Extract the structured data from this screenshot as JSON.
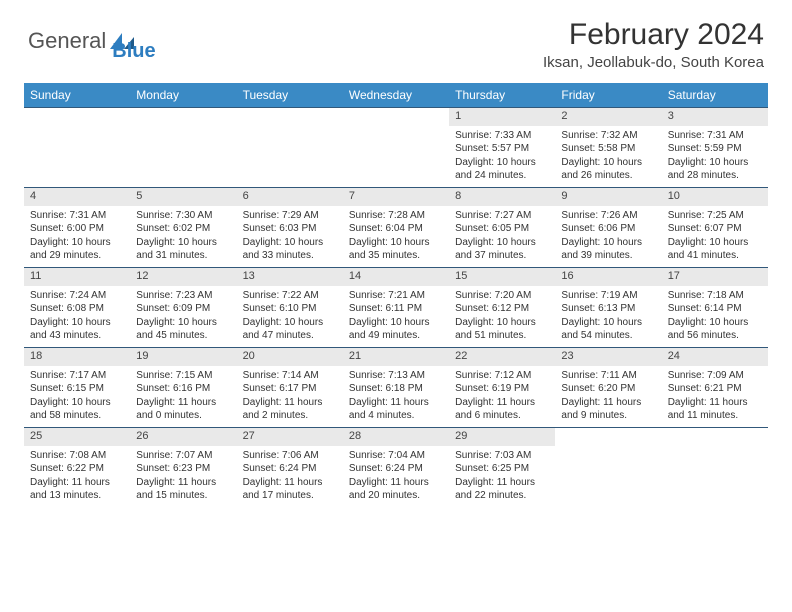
{
  "brand": {
    "part1": "General",
    "part2": "Blue"
  },
  "title": "February 2024",
  "location": "Iksan, Jeollabuk-do, South Korea",
  "colors": {
    "header_bg": "#3a8ac5",
    "header_text": "#ffffff",
    "rule": "#31587a",
    "daynum_bg": "#e9e9e9",
    "brand_blue": "#2d7dc0"
  },
  "weekdays": [
    "Sunday",
    "Monday",
    "Tuesday",
    "Wednesday",
    "Thursday",
    "Friday",
    "Saturday"
  ],
  "weeks": [
    {
      "nums": [
        "",
        "",
        "",
        "",
        "1",
        "2",
        "3"
      ],
      "cells": [
        null,
        null,
        null,
        null,
        {
          "sunrise": "7:33 AM",
          "sunset": "5:57 PM",
          "dl1": "Daylight: 10 hours",
          "dl2": "and 24 minutes."
        },
        {
          "sunrise": "7:32 AM",
          "sunset": "5:58 PM",
          "dl1": "Daylight: 10 hours",
          "dl2": "and 26 minutes."
        },
        {
          "sunrise": "7:31 AM",
          "sunset": "5:59 PM",
          "dl1": "Daylight: 10 hours",
          "dl2": "and 28 minutes."
        }
      ]
    },
    {
      "nums": [
        "4",
        "5",
        "6",
        "7",
        "8",
        "9",
        "10"
      ],
      "cells": [
        {
          "sunrise": "7:31 AM",
          "sunset": "6:00 PM",
          "dl1": "Daylight: 10 hours",
          "dl2": "and 29 minutes."
        },
        {
          "sunrise": "7:30 AM",
          "sunset": "6:02 PM",
          "dl1": "Daylight: 10 hours",
          "dl2": "and 31 minutes."
        },
        {
          "sunrise": "7:29 AM",
          "sunset": "6:03 PM",
          "dl1": "Daylight: 10 hours",
          "dl2": "and 33 minutes."
        },
        {
          "sunrise": "7:28 AM",
          "sunset": "6:04 PM",
          "dl1": "Daylight: 10 hours",
          "dl2": "and 35 minutes."
        },
        {
          "sunrise": "7:27 AM",
          "sunset": "6:05 PM",
          "dl1": "Daylight: 10 hours",
          "dl2": "and 37 minutes."
        },
        {
          "sunrise": "7:26 AM",
          "sunset": "6:06 PM",
          "dl1": "Daylight: 10 hours",
          "dl2": "and 39 minutes."
        },
        {
          "sunrise": "7:25 AM",
          "sunset": "6:07 PM",
          "dl1": "Daylight: 10 hours",
          "dl2": "and 41 minutes."
        }
      ]
    },
    {
      "nums": [
        "11",
        "12",
        "13",
        "14",
        "15",
        "16",
        "17"
      ],
      "cells": [
        {
          "sunrise": "7:24 AM",
          "sunset": "6:08 PM",
          "dl1": "Daylight: 10 hours",
          "dl2": "and 43 minutes."
        },
        {
          "sunrise": "7:23 AM",
          "sunset": "6:09 PM",
          "dl1": "Daylight: 10 hours",
          "dl2": "and 45 minutes."
        },
        {
          "sunrise": "7:22 AM",
          "sunset": "6:10 PM",
          "dl1": "Daylight: 10 hours",
          "dl2": "and 47 minutes."
        },
        {
          "sunrise": "7:21 AM",
          "sunset": "6:11 PM",
          "dl1": "Daylight: 10 hours",
          "dl2": "and 49 minutes."
        },
        {
          "sunrise": "7:20 AM",
          "sunset": "6:12 PM",
          "dl1": "Daylight: 10 hours",
          "dl2": "and 51 minutes."
        },
        {
          "sunrise": "7:19 AM",
          "sunset": "6:13 PM",
          "dl1": "Daylight: 10 hours",
          "dl2": "and 54 minutes."
        },
        {
          "sunrise": "7:18 AM",
          "sunset": "6:14 PM",
          "dl1": "Daylight: 10 hours",
          "dl2": "and 56 minutes."
        }
      ]
    },
    {
      "nums": [
        "18",
        "19",
        "20",
        "21",
        "22",
        "23",
        "24"
      ],
      "cells": [
        {
          "sunrise": "7:17 AM",
          "sunset": "6:15 PM",
          "dl1": "Daylight: 10 hours",
          "dl2": "and 58 minutes."
        },
        {
          "sunrise": "7:15 AM",
          "sunset": "6:16 PM",
          "dl1": "Daylight: 11 hours",
          "dl2": "and 0 minutes."
        },
        {
          "sunrise": "7:14 AM",
          "sunset": "6:17 PM",
          "dl1": "Daylight: 11 hours",
          "dl2": "and 2 minutes."
        },
        {
          "sunrise": "7:13 AM",
          "sunset": "6:18 PM",
          "dl1": "Daylight: 11 hours",
          "dl2": "and 4 minutes."
        },
        {
          "sunrise": "7:12 AM",
          "sunset": "6:19 PM",
          "dl1": "Daylight: 11 hours",
          "dl2": "and 6 minutes."
        },
        {
          "sunrise": "7:11 AM",
          "sunset": "6:20 PM",
          "dl1": "Daylight: 11 hours",
          "dl2": "and 9 minutes."
        },
        {
          "sunrise": "7:09 AM",
          "sunset": "6:21 PM",
          "dl1": "Daylight: 11 hours",
          "dl2": "and 11 minutes."
        }
      ]
    },
    {
      "nums": [
        "25",
        "26",
        "27",
        "28",
        "29",
        "",
        ""
      ],
      "cells": [
        {
          "sunrise": "7:08 AM",
          "sunset": "6:22 PM",
          "dl1": "Daylight: 11 hours",
          "dl2": "and 13 minutes."
        },
        {
          "sunrise": "7:07 AM",
          "sunset": "6:23 PM",
          "dl1": "Daylight: 11 hours",
          "dl2": "and 15 minutes."
        },
        {
          "sunrise": "7:06 AM",
          "sunset": "6:24 PM",
          "dl1": "Daylight: 11 hours",
          "dl2": "and 17 minutes."
        },
        {
          "sunrise": "7:04 AM",
          "sunset": "6:24 PM",
          "dl1": "Daylight: 11 hours",
          "dl2": "and 20 minutes."
        },
        {
          "sunrise": "7:03 AM",
          "sunset": "6:25 PM",
          "dl1": "Daylight: 11 hours",
          "dl2": "and 22 minutes."
        },
        null,
        null
      ]
    }
  ],
  "labels": {
    "sunrise": "Sunrise: ",
    "sunset": "Sunset: "
  }
}
